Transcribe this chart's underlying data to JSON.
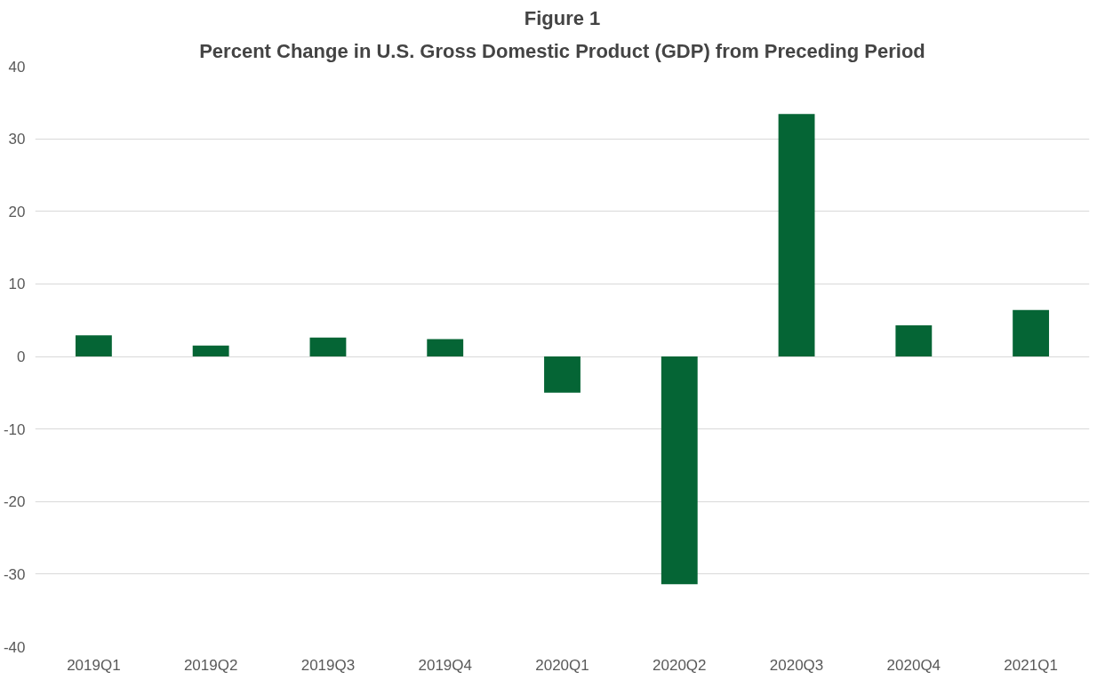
{
  "chart_data": {
    "type": "bar",
    "title": "Figure 1",
    "subtitle": "Percent Change in U.S. Gross Domestic Product (GDP) from Preceding Period",
    "categories": [
      "2019Q1",
      "2019Q2",
      "2019Q3",
      "2019Q4",
      "2020Q1",
      "2020Q2",
      "2020Q3",
      "2020Q4",
      "2021Q1"
    ],
    "values": [
      2.9,
      1.5,
      2.6,
      2.4,
      -5.0,
      -31.4,
      33.4,
      4.3,
      6.4
    ],
    "color": "#056535",
    "ylim": [
      -40,
      40
    ],
    "yticks": [
      -40,
      -30,
      -20,
      -10,
      0,
      10,
      20,
      30,
      40
    ],
    "grid": "y"
  }
}
